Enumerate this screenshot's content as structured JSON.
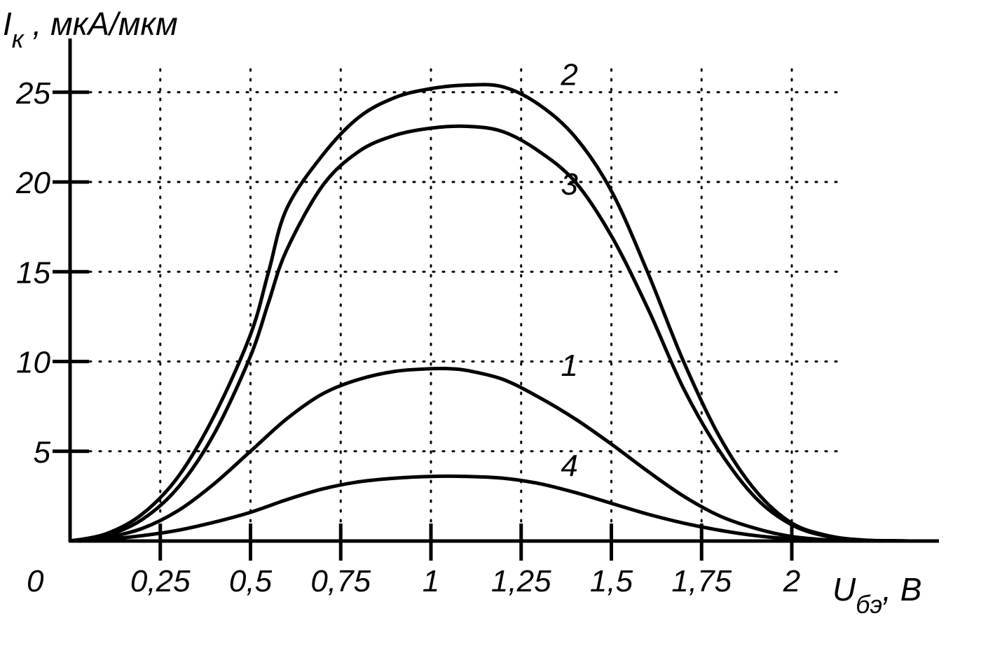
{
  "chart_data": {
    "type": "line",
    "title": "",
    "ylabel": {
      "main": "I",
      "sub": "к",
      "rest": " , мкА/мкм"
    },
    "xlabel": {
      "main": "U",
      "sub": "бэ",
      "rest": ", В"
    },
    "origin_label": "0",
    "xlim": [
      0,
      2.4
    ],
    "ylim": [
      0,
      27
    ],
    "grid": true,
    "x_ticks": [
      {
        "value": 0.25,
        "label": "0,25"
      },
      {
        "value": 0.5,
        "label": "0,5"
      },
      {
        "value": 0.75,
        "label": "0,75"
      },
      {
        "value": 1.0,
        "label": "1"
      },
      {
        "value": 1.25,
        "label": "1,25"
      },
      {
        "value": 1.5,
        "label": "1,5"
      },
      {
        "value": 1.75,
        "label": "1,75"
      },
      {
        "value": 2.0,
        "label": "2"
      }
    ],
    "y_ticks": [
      {
        "value": 5,
        "label": "5"
      },
      {
        "value": 10,
        "label": "10"
      },
      {
        "value": 15,
        "label": "15"
      },
      {
        "value": 20,
        "label": "20"
      },
      {
        "value": 25,
        "label": "25"
      }
    ],
    "series": [
      {
        "label": "1",
        "label_at": [
          1.36,
          9.2
        ],
        "x": [
          0,
          0.1,
          0.2,
          0.3,
          0.4,
          0.5,
          0.6,
          0.7,
          0.8,
          0.9,
          1.0,
          1.05,
          1.1,
          1.2,
          1.3,
          1.4,
          1.5,
          1.6,
          1.7,
          1.8,
          1.9,
          2.0,
          2.1,
          2.2,
          2.25
        ],
        "y": [
          0,
          0.2,
          0.7,
          1.7,
          3.2,
          5.0,
          6.8,
          8.2,
          9.0,
          9.45,
          9.6,
          9.6,
          9.5,
          9.0,
          8.0,
          6.8,
          5.4,
          3.9,
          2.5,
          1.4,
          0.7,
          0.25,
          0.06,
          0.01,
          0
        ]
      },
      {
        "label": "2",
        "label_at": [
          1.36,
          25.4
        ],
        "x": [
          0,
          0.1,
          0.2,
          0.3,
          0.4,
          0.5,
          0.55,
          0.6,
          0.7,
          0.8,
          0.9,
          1.0,
          1.1,
          1.2,
          1.3,
          1.4,
          1.5,
          1.6,
          1.7,
          1.8,
          1.9,
          2.0,
          2.1,
          2.2,
          2.3,
          2.35
        ],
        "y": [
          0,
          0.4,
          1.5,
          3.6,
          7.0,
          11.5,
          15.0,
          18.5,
          21.5,
          23.6,
          24.7,
          25.2,
          25.4,
          25.3,
          24.3,
          22.5,
          19.5,
          15.0,
          10.0,
          5.8,
          2.8,
          1.0,
          0.3,
          0.05,
          0.01,
          0
        ]
      },
      {
        "label": "3",
        "label_at": [
          1.36,
          19.3
        ],
        "x": [
          0,
          0.1,
          0.2,
          0.3,
          0.4,
          0.5,
          0.55,
          0.6,
          0.7,
          0.8,
          0.9,
          1.0,
          1.1,
          1.2,
          1.3,
          1.4,
          1.5,
          1.6,
          1.7,
          1.8,
          1.9,
          2.0,
          2.1,
          2.2,
          2.3,
          2.35
        ],
        "y": [
          0,
          0.3,
          1.2,
          3.0,
          6.0,
          10.3,
          13.3,
          16.2,
          19.8,
          21.7,
          22.6,
          23.0,
          23.1,
          22.8,
          21.7,
          20.0,
          17.0,
          13.0,
          8.5,
          5.0,
          2.4,
          0.9,
          0.25,
          0.05,
          0.01,
          0
        ]
      },
      {
        "label": "4",
        "label_at": [
          1.36,
          3.6
        ],
        "x": [
          0,
          0.1,
          0.2,
          0.3,
          0.4,
          0.5,
          0.6,
          0.7,
          0.8,
          0.9,
          1.0,
          1.1,
          1.2,
          1.3,
          1.4,
          1.5,
          1.6,
          1.7,
          1.8,
          1.9,
          2.0,
          2.1,
          2.2,
          2.25
        ],
        "y": [
          0,
          0.1,
          0.3,
          0.6,
          1.05,
          1.6,
          2.3,
          2.9,
          3.3,
          3.5,
          3.6,
          3.6,
          3.5,
          3.2,
          2.7,
          2.1,
          1.5,
          1.0,
          0.6,
          0.3,
          0.12,
          0.04,
          0.01,
          0
        ]
      }
    ]
  }
}
